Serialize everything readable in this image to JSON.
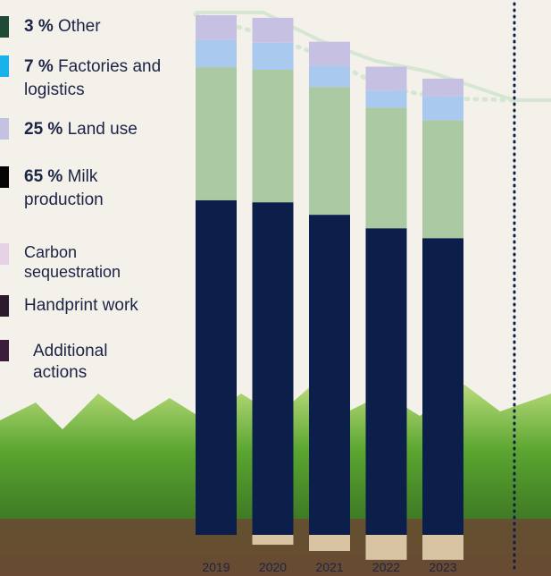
{
  "chart_data": {
    "type": "stacked-bar",
    "categories": [
      "2019",
      "2020",
      "2021",
      "2022",
      "2023"
    ],
    "series": [
      {
        "name": "Milk production",
        "share": 65,
        "share_label": "65 %",
        "color": "#0c1f4a",
        "legend_color": "#050505",
        "values": [
          64.4,
          64,
          61.6,
          59,
          57.1
        ]
      },
      {
        "name": "Land use",
        "share": 25,
        "share_label": "25 %",
        "color": "#abc9a2",
        "legend_color": "#c5c1e2",
        "values": [
          25.6,
          25.5,
          24.6,
          23.2,
          22.7
        ]
      },
      {
        "name": "Factories and logistics",
        "share": 7,
        "share_label": "7 %",
        "color": "#a9c9ee",
        "legend_color": "#19b2ea",
        "values": [
          5.2,
          5.2,
          4.1,
          3.3,
          4.6
        ]
      },
      {
        "name": "Other",
        "share": 3,
        "share_label": "3 %",
        "color": "#c6c1e3",
        "legend_color": "#1f4a38",
        "values": [
          4.8,
          4.8,
          4.6,
          4.6,
          3.4
        ]
      },
      {
        "name": "Carbon sequestration",
        "color": "#d8c3a2",
        "legend_color": "#e7d1e6",
        "values": [
          0,
          -1.9,
          -3.1,
          -4.8,
          -4.8
        ]
      },
      {
        "name": "Handprint work",
        "color": "#2a1a2c",
        "legend_color": "#2a1a2c",
        "values": [
          null,
          null,
          null,
          null,
          null
        ]
      },
      {
        "name": "Additional actions",
        "color": "#3a1c3c",
        "legend_color": "#3a1c3c",
        "values": [
          null,
          null,
          null,
          null,
          null
        ]
      }
    ]
  }
}
